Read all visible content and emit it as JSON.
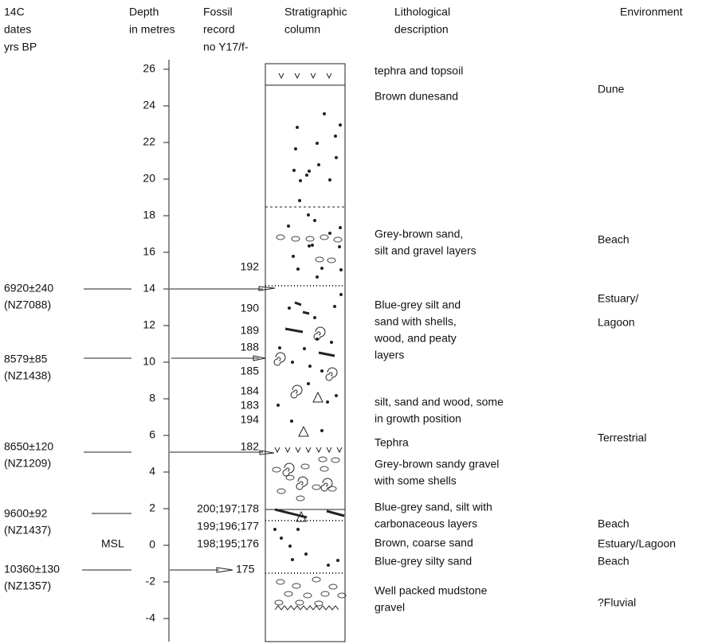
{
  "headers": {
    "dates": [
      "14C",
      "dates",
      "yrs BP"
    ],
    "depth": [
      "Depth",
      "in metres"
    ],
    "fossil": [
      "Fossil",
      "record",
      "no Y17/f-"
    ],
    "column": [
      "Stratigraphic",
      "column"
    ],
    "lithology": [
      "Lithological",
      "description"
    ],
    "environment": [
      "Environment"
    ]
  },
  "depth_ticks": [
    26,
    24,
    22,
    20,
    18,
    16,
    14,
    12,
    10,
    8,
    6,
    4,
    2,
    0,
    -2,
    -4
  ],
  "msl": "MSL",
  "dates": [
    [
      "6920±240",
      "(NZ7088)"
    ],
    [
      "8579±85",
      "(NZ1438)"
    ],
    [
      "8650±120",
      "(NZ1209)"
    ],
    [
      "9600±92",
      "(NZ1437)"
    ],
    [
      "10360±130",
      "(NZ1357)"
    ]
  ],
  "fossils": [
    "192",
    "190",
    "189",
    "188",
    "185",
    "184",
    "183",
    "194",
    "182",
    "200;197;178",
    "199;196;177",
    "198;195;176",
    "175"
  ],
  "lithology": [
    [
      "tephra and topsoil"
    ],
    [
      "Brown dunesand"
    ],
    [
      "Grey-brown sand,",
      "silt and gravel layers"
    ],
    [
      "Blue-grey silt and",
      "sand with shells,",
      "wood, and peaty",
      "layers"
    ],
    [
      "silt, sand and wood, some",
      "in growth position"
    ],
    [
      "Tephra"
    ],
    [
      "Grey-brown sandy gravel",
      "with some shells"
    ],
    [
      "Blue-grey sand, silt with",
      "carbonaceous layers"
    ],
    [
      "Brown, coarse sand"
    ],
    [
      "Blue-grey silty sand"
    ],
    [
      "Well packed mudstone",
      "gravel"
    ]
  ],
  "environment": [
    [
      "Dune"
    ],
    [
      "Beach"
    ],
    [
      "Estuary/",
      "Lagoon"
    ],
    [
      "Terrestrial"
    ],
    [
      "Beach"
    ],
    [
      "Estuary/Lagoon"
    ],
    [
      "Beach"
    ],
    [
      "?Fluvial"
    ]
  ]
}
